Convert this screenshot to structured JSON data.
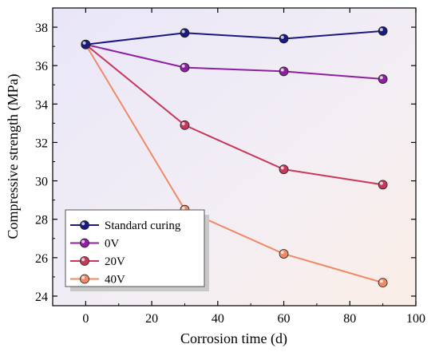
{
  "chart_data": {
    "type": "line",
    "title": "",
    "xlabel": "Corrosion time (d)",
    "ylabel": "Compressive strength (MPa)",
    "xlim": [
      -10,
      100
    ],
    "ylim": [
      23.5,
      39
    ],
    "xticks": [
      0,
      20,
      40,
      60,
      80,
      100
    ],
    "yticks": [
      24,
      26,
      28,
      30,
      32,
      34,
      36,
      38
    ],
    "grid": false,
    "legend_position": "bottom-left",
    "background": "gradient-lavender-to-peach",
    "x": [
      0,
      30,
      60,
      90
    ],
    "series": [
      {
        "name": "Standard curing",
        "color": "#1a1a7e",
        "values": [
          37.1,
          37.7,
          37.4,
          37.8
        ]
      },
      {
        "name": "0V",
        "color": "#8e1fa0",
        "values": [
          37.1,
          35.9,
          35.7,
          35.3
        ]
      },
      {
        "name": "20V",
        "color": "#c8385a",
        "values": [
          37.1,
          32.9,
          30.6,
          29.8
        ]
      },
      {
        "name": "40V",
        "color": "#ef8a66",
        "values": [
          37.1,
          28.5,
          26.2,
          24.7
        ]
      }
    ]
  }
}
